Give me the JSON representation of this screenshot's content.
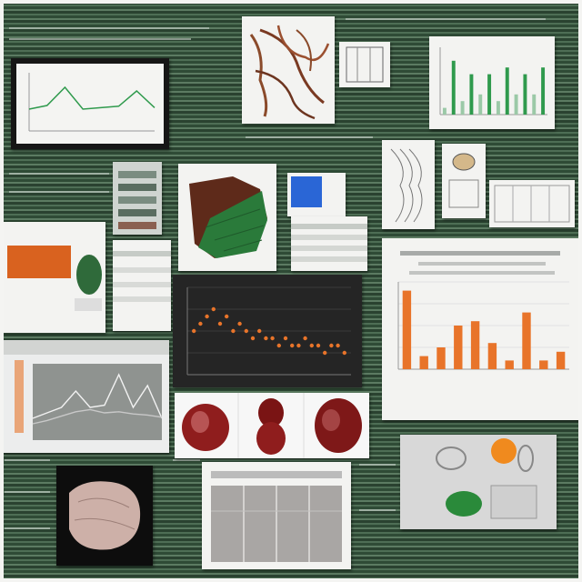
{
  "colors": {
    "background": "#3d5a45",
    "paper": "#f3f3f1",
    "chart_orange": "#e8742a",
    "chart_green": "#2f9a4d",
    "dark_panel": "#2a2a2a",
    "organ_red": "#8f1d1d",
    "map_green": "#2a7a3a",
    "map_brown": "#5e2a1a"
  },
  "panels": [
    {
      "id": "monitor-line-chart",
      "kind": "line chart on monitor"
    },
    {
      "id": "vein-sketch",
      "kind": "illustration"
    },
    {
      "id": "green-bar-chart",
      "kind": "bar chart"
    },
    {
      "id": "organ-map",
      "kind": "illustration"
    },
    {
      "id": "dark-scatter-chart",
      "kind": "scatter chart"
    },
    {
      "id": "orange-bar-chart",
      "kind": "bar chart"
    },
    {
      "id": "grey-line-chart",
      "kind": "line chart"
    },
    {
      "id": "heart-images",
      "kind": "photo strip"
    },
    {
      "id": "tissue-photo",
      "kind": "photo"
    },
    {
      "id": "grey-table",
      "kind": "table"
    },
    {
      "id": "flask-photo",
      "kind": "photo"
    }
  ],
  "chart_data": [
    {
      "type": "line",
      "series": [
        {
          "values": [
            3,
            3.5,
            6,
            3,
            3.2,
            3.4,
            5.5,
            3.2
          ]
        }
      ]
    },
    {
      "type": "bar",
      "values": [
        1,
        8,
        2,
        6,
        3,
        6,
        2,
        7,
        3,
        6,
        3,
        7
      ]
    },
    {
      "type": "scatter",
      "x": [
        1,
        2,
        3,
        4,
        5,
        6,
        7,
        8,
        9,
        10,
        11,
        12,
        13,
        14,
        15,
        16,
        17,
        18,
        19,
        20,
        21,
        22,
        23,
        24
      ],
      "y": [
        6,
        7,
        8,
        9,
        7,
        8,
        6,
        7,
        6,
        5,
        6,
        5,
        5,
        4,
        5,
        4,
        4,
        5,
        4,
        4,
        3,
        4,
        4,
        3
      ]
    },
    {
      "type": "bar",
      "values": [
        9,
        1.5,
        2.5,
        5,
        5.5,
        3,
        1,
        6.5,
        1,
        2
      ]
    },
    {
      "type": "line",
      "series": [
        {
          "values": [
            2,
            2.5,
            3,
            4.5,
            3,
            3.2,
            6,
            3,
            5,
            2
          ]
        },
        {
          "values": [
            1.5,
            1.8,
            2.2,
            2.6,
            2.8,
            2.5,
            2.6,
            2.4,
            2.3,
            2.1
          ]
        }
      ]
    }
  ]
}
